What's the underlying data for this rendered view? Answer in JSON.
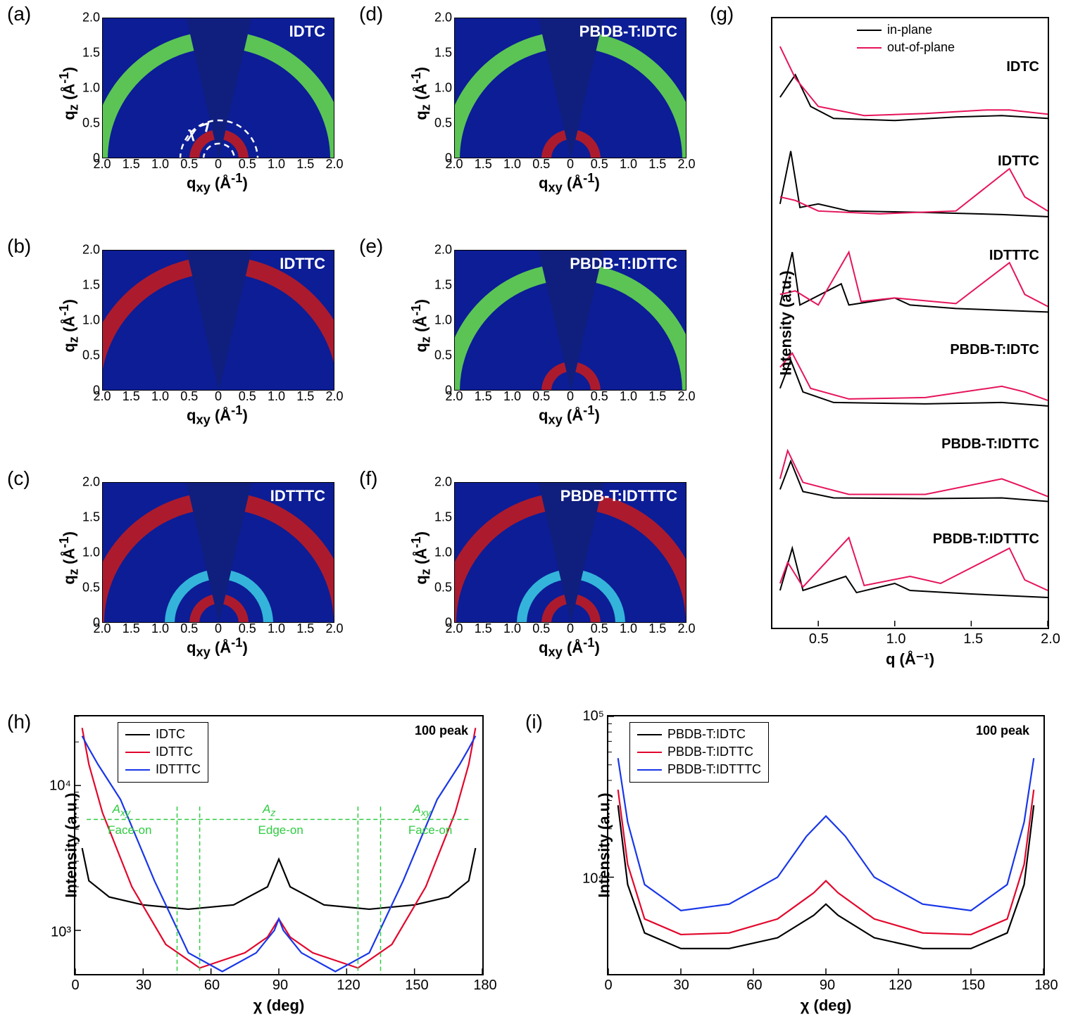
{
  "panels_af": {
    "xlabel": "q_xy (Å⁻¹)",
    "ylabel": "q_z (Å⁻¹)",
    "xticks": [
      "2.0",
      "1.5",
      "1.0",
      "0.5",
      "0",
      "0.5",
      "1.0",
      "1.5",
      "2.0"
    ],
    "yticks": [
      "0",
      "0.5",
      "1.0",
      "1.5",
      "2.0"
    ],
    "bg_color": "#0c1d96",
    "wedge_color": "#101f7e",
    "chi_label": "χ",
    "items": [
      {
        "key": "a",
        "label": "(a)",
        "sample": "IDTC",
        "rings": [
          {
            "r": 1.7,
            "c": "#6ae24a"
          },
          {
            "r": 0.35,
            "c": "#c91b1b"
          }
        ],
        "showChi": true
      },
      {
        "key": "b",
        "label": "(b)",
        "sample": "IDTTC",
        "rings": [
          {
            "r": 1.8,
            "c": "#c91b1b"
          }
        ]
      },
      {
        "key": "c",
        "label": "(c)",
        "sample": "IDTTTC",
        "rings": [
          {
            "r": 1.75,
            "c": "#c91b1b"
          },
          {
            "r": 0.7,
            "c": "#3ccfe6"
          },
          {
            "r": 0.35,
            "c": "#c91b1b"
          }
        ]
      },
      {
        "key": "d",
        "label": "(d)",
        "sample": "PBDB-T:IDTC",
        "rings": [
          {
            "r": 1.7,
            "c": "#6ae24a"
          },
          {
            "r": 0.35,
            "c": "#c91b1b"
          }
        ]
      },
      {
        "key": "e",
        "label": "(e)",
        "sample": "PBDB-T:IDTTC",
        "rings": [
          {
            "r": 1.7,
            "c": "#6ae24a"
          },
          {
            "r": 0.35,
            "c": "#c91b1b"
          }
        ]
      },
      {
        "key": "f",
        "label": "(f)",
        "sample": "PBDB-T:IDTTTC",
        "rings": [
          {
            "r": 1.75,
            "c": "#c91b1b"
          },
          {
            "r": 0.7,
            "c": "#3ccfe6"
          },
          {
            "r": 0.35,
            "c": "#c91b1b"
          }
        ]
      }
    ]
  },
  "panel_g": {
    "label": "(g)",
    "xlabel": "q (Å⁻¹)",
    "ylabel": "Intensity (a.u.)",
    "xticks": [
      "0.5",
      "1.0",
      "1.5",
      "2.0"
    ],
    "legend": [
      {
        "label": "in-plane",
        "color": "#000000"
      },
      {
        "label": "out-of-plane",
        "color": "#e6145a"
      }
    ],
    "traces": [
      {
        "name": "IDTC",
        "offset": 5,
        "ip": [
          [
            0.25,
            0.68
          ],
          [
            0.35,
            1.0
          ],
          [
            0.45,
            0.55
          ],
          [
            0.6,
            0.38
          ],
          [
            1.0,
            0.35
          ],
          [
            1.4,
            0.4
          ],
          [
            1.7,
            0.42
          ],
          [
            2.0,
            0.38
          ]
        ],
        "oop": [
          [
            0.25,
            1.4
          ],
          [
            0.35,
            0.95
          ],
          [
            0.5,
            0.55
          ],
          [
            0.8,
            0.42
          ],
          [
            1.2,
            0.45
          ],
          [
            1.6,
            0.5
          ],
          [
            1.75,
            0.5
          ],
          [
            2.0,
            0.44
          ]
        ]
      },
      {
        "name": "IDTTC",
        "offset": 4,
        "ip": [
          [
            0.25,
            0.5
          ],
          [
            0.32,
            1.25
          ],
          [
            0.38,
            0.45
          ],
          [
            0.5,
            0.5
          ],
          [
            0.7,
            0.4
          ],
          [
            1.2,
            0.38
          ],
          [
            1.7,
            0.35
          ],
          [
            2.0,
            0.32
          ]
        ],
        "oop": [
          [
            0.25,
            0.6
          ],
          [
            0.35,
            0.55
          ],
          [
            0.5,
            0.4
          ],
          [
            0.9,
            0.36
          ],
          [
            1.4,
            0.4
          ],
          [
            1.75,
            1.0
          ],
          [
            1.85,
            0.6
          ],
          [
            2.0,
            0.4
          ]
        ]
      },
      {
        "name": "IDTTTC",
        "offset": 3,
        "ip": [
          [
            0.25,
            0.4
          ],
          [
            0.33,
            1.15
          ],
          [
            0.38,
            0.4
          ],
          [
            0.65,
            0.7
          ],
          [
            0.7,
            0.4
          ],
          [
            1.0,
            0.5
          ],
          [
            1.1,
            0.4
          ],
          [
            1.4,
            0.35
          ],
          [
            2.0,
            0.3
          ]
        ],
        "oop": [
          [
            0.25,
            0.55
          ],
          [
            0.35,
            0.6
          ],
          [
            0.5,
            0.4
          ],
          [
            0.7,
            1.15
          ],
          [
            0.78,
            0.45
          ],
          [
            1.0,
            0.5
          ],
          [
            1.4,
            0.42
          ],
          [
            1.75,
            1.0
          ],
          [
            1.85,
            0.55
          ],
          [
            2.0,
            0.38
          ]
        ]
      },
      {
        "name": "PBDB-T:IDTC",
        "offset": 2,
        "ip": [
          [
            0.25,
            0.55
          ],
          [
            0.32,
            0.95
          ],
          [
            0.4,
            0.5
          ],
          [
            0.6,
            0.35
          ],
          [
            1.2,
            0.33
          ],
          [
            1.7,
            0.35
          ],
          [
            2.0,
            0.3
          ]
        ],
        "oop": [
          [
            0.25,
            0.85
          ],
          [
            0.33,
            1.05
          ],
          [
            0.45,
            0.55
          ],
          [
            0.7,
            0.4
          ],
          [
            1.2,
            0.42
          ],
          [
            1.7,
            0.58
          ],
          [
            1.85,
            0.5
          ],
          [
            2.0,
            0.38
          ]
        ]
      },
      {
        "name": "PBDB-T:IDTTC",
        "offset": 1,
        "ip": [
          [
            0.25,
            0.45
          ],
          [
            0.32,
            0.85
          ],
          [
            0.4,
            0.42
          ],
          [
            0.6,
            0.33
          ],
          [
            1.2,
            0.32
          ],
          [
            1.7,
            0.33
          ],
          [
            2.0,
            0.28
          ]
        ],
        "oop": [
          [
            0.25,
            0.6
          ],
          [
            0.3,
            1.0
          ],
          [
            0.4,
            0.55
          ],
          [
            0.7,
            0.38
          ],
          [
            1.2,
            0.38
          ],
          [
            1.7,
            0.6
          ],
          [
            1.85,
            0.48
          ],
          [
            2.0,
            0.35
          ]
        ]
      },
      {
        "name": "PBDB-T:IDTTTC",
        "offset": 0,
        "ip": [
          [
            0.25,
            0.35
          ],
          [
            0.33,
            0.95
          ],
          [
            0.4,
            0.35
          ],
          [
            0.68,
            0.55
          ],
          [
            0.75,
            0.32
          ],
          [
            1.0,
            0.45
          ],
          [
            1.1,
            0.35
          ],
          [
            1.5,
            0.3
          ],
          [
            2.0,
            0.25
          ]
        ],
        "oop": [
          [
            0.25,
            0.45
          ],
          [
            0.3,
            0.75
          ],
          [
            0.4,
            0.4
          ],
          [
            0.7,
            1.1
          ],
          [
            0.8,
            0.42
          ],
          [
            1.1,
            0.55
          ],
          [
            1.3,
            0.45
          ],
          [
            1.75,
            0.95
          ],
          [
            1.85,
            0.5
          ],
          [
            2.0,
            0.35
          ]
        ]
      }
    ]
  },
  "panel_h": {
    "label": "(h)",
    "title": "100 peak",
    "xlabel": "χ (deg)",
    "ylabel": "Intensity (a.u.)",
    "xlim": [
      0,
      180
    ],
    "ylim": [
      500,
      30000
    ],
    "xticks": [
      0,
      30,
      60,
      90,
      120,
      150,
      180
    ],
    "ylog_ticks": [
      1000,
      10000
    ],
    "ylog_labels": [
      "10³",
      "10⁴"
    ],
    "region_labels": {
      "Axy": "A_xy",
      "Az": "A_z",
      "faceon": "Face-on",
      "edgeon": "Edge-on"
    },
    "region_x": [
      45,
      55,
      125,
      135
    ],
    "legend": [
      {
        "label": "IDTC",
        "color": "#000000"
      },
      {
        "label": "IDTTC",
        "color": "#e2062c"
      },
      {
        "label": "IDTTTC",
        "color": "#1836e8"
      }
    ],
    "series": {
      "IDTC": [
        [
          3,
          3700
        ],
        [
          6,
          2200
        ],
        [
          15,
          1700
        ],
        [
          30,
          1500
        ],
        [
          50,
          1400
        ],
        [
          70,
          1500
        ],
        [
          85,
          2000
        ],
        [
          90,
          3100
        ],
        [
          95,
          2000
        ],
        [
          110,
          1500
        ],
        [
          130,
          1400
        ],
        [
          150,
          1500
        ],
        [
          165,
          1700
        ],
        [
          174,
          2200
        ],
        [
          177,
          3700
        ]
      ],
      "IDTTC": [
        [
          3,
          25000
        ],
        [
          6,
          14000
        ],
        [
          12,
          6500
        ],
        [
          25,
          2000
        ],
        [
          40,
          800
        ],
        [
          55,
          550
        ],
        [
          75,
          700
        ],
        [
          85,
          900
        ],
        [
          90,
          1200
        ],
        [
          95,
          900
        ],
        [
          105,
          700
        ],
        [
          125,
          550
        ],
        [
          140,
          800
        ],
        [
          155,
          2000
        ],
        [
          168,
          6500
        ],
        [
          174,
          14000
        ],
        [
          177,
          25000
        ]
      ],
      "IDTTTC": [
        [
          3,
          22000
        ],
        [
          6,
          18000
        ],
        [
          10,
          14000
        ],
        [
          20,
          8000
        ],
        [
          35,
          2200
        ],
        [
          50,
          700
        ],
        [
          65,
          520
        ],
        [
          80,
          700
        ],
        [
          88,
          1000
        ],
        [
          90,
          1200
        ],
        [
          92,
          1000
        ],
        [
          100,
          700
        ],
        [
          115,
          520
        ],
        [
          130,
          700
        ],
        [
          145,
          2200
        ],
        [
          160,
          8000
        ],
        [
          170,
          14000
        ],
        [
          174,
          18000
        ],
        [
          177,
          22000
        ]
      ]
    }
  },
  "panel_i": {
    "label": "(i)",
    "title": "100 peak",
    "xlabel": "χ (deg)",
    "ylabel": "Intensity (a.u.)",
    "xlim": [
      0,
      180
    ],
    "ylim": [
      2500,
      100000
    ],
    "xticks": [
      0,
      30,
      60,
      90,
      120,
      150,
      180
    ],
    "ylog_ticks": [
      10000,
      100000
    ],
    "ylog_labels": [
      "10⁴",
      "10⁵"
    ],
    "legend": [
      {
        "label": "PBDB-T:IDTC",
        "color": "#000000"
      },
      {
        "label": "PBDB-T:IDTTC",
        "color": "#e2062c"
      },
      {
        "label": "PBDB-T:IDTTTC",
        "color": "#1836e8"
      }
    ],
    "series": {
      "PBDB-T:IDTC": [
        [
          4,
          28000
        ],
        [
          8,
          9000
        ],
        [
          15,
          4500
        ],
        [
          30,
          3600
        ],
        [
          50,
          3600
        ],
        [
          70,
          4200
        ],
        [
          85,
          5800
        ],
        [
          90,
          6800
        ],
        [
          95,
          5800
        ],
        [
          110,
          4200
        ],
        [
          130,
          3600
        ],
        [
          150,
          3600
        ],
        [
          165,
          4500
        ],
        [
          172,
          9000
        ],
        [
          176,
          28000
        ]
      ],
      "PBDB-T:IDTTC": [
        [
          4,
          35000
        ],
        [
          8,
          12000
        ],
        [
          15,
          5500
        ],
        [
          30,
          4400
        ],
        [
          50,
          4500
        ],
        [
          70,
          5500
        ],
        [
          85,
          8000
        ],
        [
          90,
          9500
        ],
        [
          95,
          8000
        ],
        [
          110,
          5500
        ],
        [
          130,
          4500
        ],
        [
          150,
          4400
        ],
        [
          165,
          5500
        ],
        [
          172,
          12000
        ],
        [
          176,
          35000
        ]
      ],
      "PBDB-T:IDTTTC": [
        [
          4,
          55000
        ],
        [
          8,
          22000
        ],
        [
          15,
          9000
        ],
        [
          30,
          6200
        ],
        [
          50,
          6800
        ],
        [
          70,
          10000
        ],
        [
          82,
          18000
        ],
        [
          90,
          24000
        ],
        [
          98,
          18000
        ],
        [
          110,
          10000
        ],
        [
          130,
          6800
        ],
        [
          150,
          6200
        ],
        [
          165,
          9000
        ],
        [
          172,
          22000
        ],
        [
          176,
          55000
        ]
      ]
    }
  }
}
